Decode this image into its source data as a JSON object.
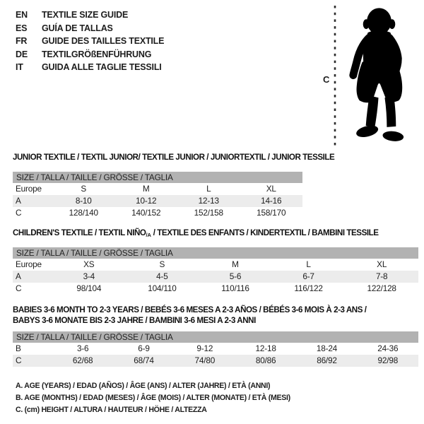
{
  "colors": {
    "bar": "#b2b2b2",
    "shaded_row": "#ececec",
    "text": "#1d1d1d"
  },
  "languages": [
    {
      "code": "EN",
      "label": "TEXTILE SIZE GUIDE"
    },
    {
      "code": "ES",
      "label": "GUÍA DE TALLAS"
    },
    {
      "code": "FR",
      "label": "GUIDE DES TAILLES TEXTILE"
    },
    {
      "code": "DE",
      "label": "TEXTILGRÖßENFÜHRUNG"
    },
    {
      "code": "IT",
      "label": "GUIDA ALLE TAGLIE TESSILI"
    }
  ],
  "figure": {
    "measure_label": "C"
  },
  "tables": [
    {
      "title_lines": [
        [
          {
            "text": "JUNIOR TEXTILE / TEXTIL JUNIOR/ TEXTILE JUNIOR / JUNIORTEXTIL / JUNIOR TESSILE"
          }
        ]
      ],
      "size_header": "SIZE / TALLA / TAILLE / GRÖSSE / TAGLIA",
      "rows": [
        {
          "label": "Europe",
          "values": [
            "S",
            "M",
            "L",
            "XL"
          ]
        },
        {
          "label": "A",
          "values": [
            "8-10",
            "10-12",
            "12-13",
            "14-16"
          ]
        },
        {
          "label": "C",
          "values": [
            "128/140",
            "140/152",
            "152/158",
            "158/170"
          ]
        }
      ]
    },
    {
      "title_lines": [
        [
          {
            "text": "CHILDREN'S TEXTILE / TEXTIL NIÑO"
          },
          {
            "text": "/A",
            "sub": true
          },
          {
            "text": " / TEXTILE DES ENFANTS / KINDERTEXTIL / BAMBINI TESSILE"
          }
        ]
      ],
      "size_header": "SIZE / TALLA / TAILLE / GRÖSSE / TAGLIA",
      "rows": [
        {
          "label": "Europe",
          "values": [
            "XS",
            "S",
            "M",
            "L",
            "XL"
          ]
        },
        {
          "label": "A",
          "values": [
            "3-4",
            "4-5",
            "5-6",
            "6-7",
            "7-8"
          ]
        },
        {
          "label": "C",
          "values": [
            "98/104",
            "104/110",
            "110/116",
            "116/122",
            "122/128"
          ]
        }
      ]
    },
    {
      "title_lines": [
        [
          {
            "text": "BABIES 3-6 MONTH TO 2-3 YEARS / BEBÉS 3-6 MESES A 2-3 AÑOS / BÉBÉS 3-6 MOIS À 2-3 ANS /"
          }
        ],
        [
          {
            "text": "BABYS 3-6 MONATE BIS 2-3 JAHRE / BAMBINI 3-6 MESI A 2-3 ANNI"
          }
        ]
      ],
      "size_header": "SIZE / TALLA / TAILLE / GRÖSSE / TAGLIA",
      "rows": [
        {
          "label": "B",
          "values": [
            "3-6",
            "6-9",
            "9-12",
            "12-18",
            "18-24",
            "24-36"
          ]
        },
        {
          "label": "C",
          "values": [
            "62/68",
            "68/74",
            "74/80",
            "80/86",
            "86/92",
            "92/98"
          ]
        }
      ]
    }
  ],
  "footnotes": [
    "A. AGE (YEARS) / EDAD (AÑOS) / ÂGE (ANS) / ALTER (JAHRE) / ETÀ (ANNI)",
    "B. AGE (MONTHS) / EDAD (MESES) / ÂGE (MOIS) / ALTER (MONATE) / ETÀ (MESI)",
    "C. (cm) HEIGHT / ALTURA / HAUTEUR / HÖHE / ALTEZZA"
  ]
}
